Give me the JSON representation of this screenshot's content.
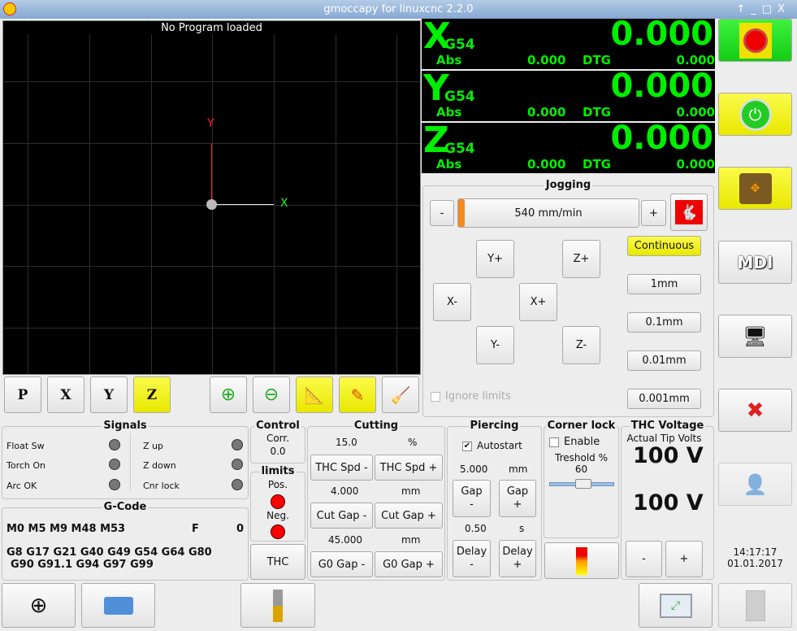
{
  "window": {
    "title": "gmoccapy for linuxcnc  2.2.0",
    "controls": [
      "↑",
      "_",
      "□",
      "X"
    ]
  },
  "preview": {
    "status": "No Program loaded",
    "axis_x": "X",
    "axis_y": "Y",
    "toolbar": [
      "P",
      "X",
      "Y",
      "Z"
    ]
  },
  "dro": {
    "axes": [
      {
        "axis": "X",
        "coord": "G54",
        "value": "0.000",
        "abs_label": "Abs",
        "abs": "0.000",
        "dtg_label": "DTG",
        "dtg": "0.000"
      },
      {
        "axis": "Y",
        "coord": "G54",
        "value": "0.000",
        "abs_label": "Abs",
        "abs": "0.000",
        "dtg_label": "DTG",
        "dtg": "0.000"
      },
      {
        "axis": "Z",
        "coord": "G54",
        "value": "0.000",
        "abs_label": "Abs",
        "abs": "0.000",
        "dtg_label": "DTG",
        "dtg": "0.000"
      }
    ]
  },
  "jogging": {
    "title": "Jogging",
    "minus": "-",
    "plus": "+",
    "speed": "540 mm/min",
    "speed_fraction": 0.02,
    "buttons": {
      "yplus": "Y+",
      "zplus": "Z+",
      "xminus": "X-",
      "xplus": "X+",
      "yminus": "Y-",
      "zminus": "Z-"
    },
    "increments": [
      "Continuous",
      "1mm",
      "0.1mm",
      "0.01mm",
      "0.001mm"
    ],
    "ignore_limits": "Ignore limits"
  },
  "signals": {
    "title": "Signals",
    "left": [
      "Float Sw",
      "Torch On",
      "Arc OK"
    ],
    "right": [
      "Z up",
      "Z down",
      "Cnr lock"
    ]
  },
  "gcode": {
    "title": "G-Code",
    "mcodes": "M0 M5 M9 M48 M53",
    "f_label": "F",
    "f_value": "0",
    "gcodes1": "G8 G17 G21 G40 G49 G54 G64 G80",
    "gcodes2": "G90 G91.1 G94 G97 G99"
  },
  "control": {
    "title": "Control",
    "corr_label": "Corr.",
    "corr": "0.0"
  },
  "limits": {
    "title": "limits",
    "pos": "Pos.",
    "neg": "Neg.",
    "thc": "THC"
  },
  "cutting": {
    "title": "Cutting",
    "thc_speed": "15.0",
    "thc_unit": "%",
    "spd_minus": "THC Spd -",
    "spd_plus": "THC Spd +",
    "cut_gap": "4.000",
    "cut_unit": "mm",
    "cut_minus": "Cut Gap -",
    "cut_plus": "Cut Gap +",
    "g0_gap": "45.000",
    "g0_unit": "mm",
    "g0_minus": "G0 Gap -",
    "g0_plus": "G0 Gap +"
  },
  "piercing": {
    "title": "Piercing",
    "autostart": "Autostart",
    "gap": "5.000",
    "gap_unit": "mm",
    "gap_minus": "Gap\n-",
    "gap_plus": "Gap\n+",
    "delay": "0.50",
    "delay_unit": "s",
    "delay_minus": "Delay\n-",
    "delay_plus": "Delay\n+"
  },
  "corner_lock": {
    "title": "Corner lock",
    "enable": "Enable",
    "threshold_label": "Treshold %",
    "threshold": "60"
  },
  "thc_voltage": {
    "title": "THC Voltage",
    "actual_label": "Actual Tip Volts",
    "actual": "100 V",
    "set": "100 V",
    "minus": "-",
    "plus": "+"
  },
  "clock": {
    "time": "14:17:17",
    "date": "01.01.2017"
  },
  "sidebar": {
    "mdi": "MDI"
  },
  "colors": {
    "dro_green": "#00ee00",
    "yellow": "#f0f000",
    "estop_green": "#22dd22"
  }
}
